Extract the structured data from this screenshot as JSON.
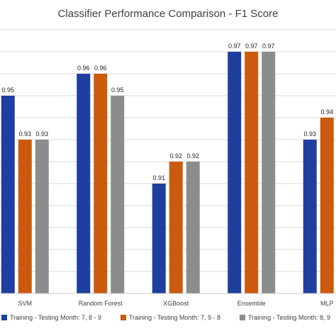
{
  "chart_data": {
    "type": "bar",
    "title": "Classifier Performance Comparison - F1 Score",
    "categories": [
      "SVM",
      "Random Forest",
      "XGBoost",
      "Ensemble",
      "MLP"
    ],
    "series": [
      {
        "name": "Training - Testing Month: 7, 8 - 9",
        "color": "#1f3fa0",
        "values": [
          0.95,
          0.96,
          0.91,
          0.97,
          0.93
        ]
      },
      {
        "name": "Training - Testing Month: 7, 9 - 8",
        "color": "#cc5a0e",
        "values": [
          0.93,
          0.96,
          0.92,
          0.97,
          0.94
        ]
      },
      {
        "name": "Training - Testing Month: 8, 9",
        "color": "#8c8c8c",
        "values": [
          0.93,
          0.95,
          0.92,
          0.97,
          null
        ]
      }
    ],
    "ylim": [
      0.86,
      0.98
    ],
    "grid": true,
    "legend_position": "bottom"
  }
}
